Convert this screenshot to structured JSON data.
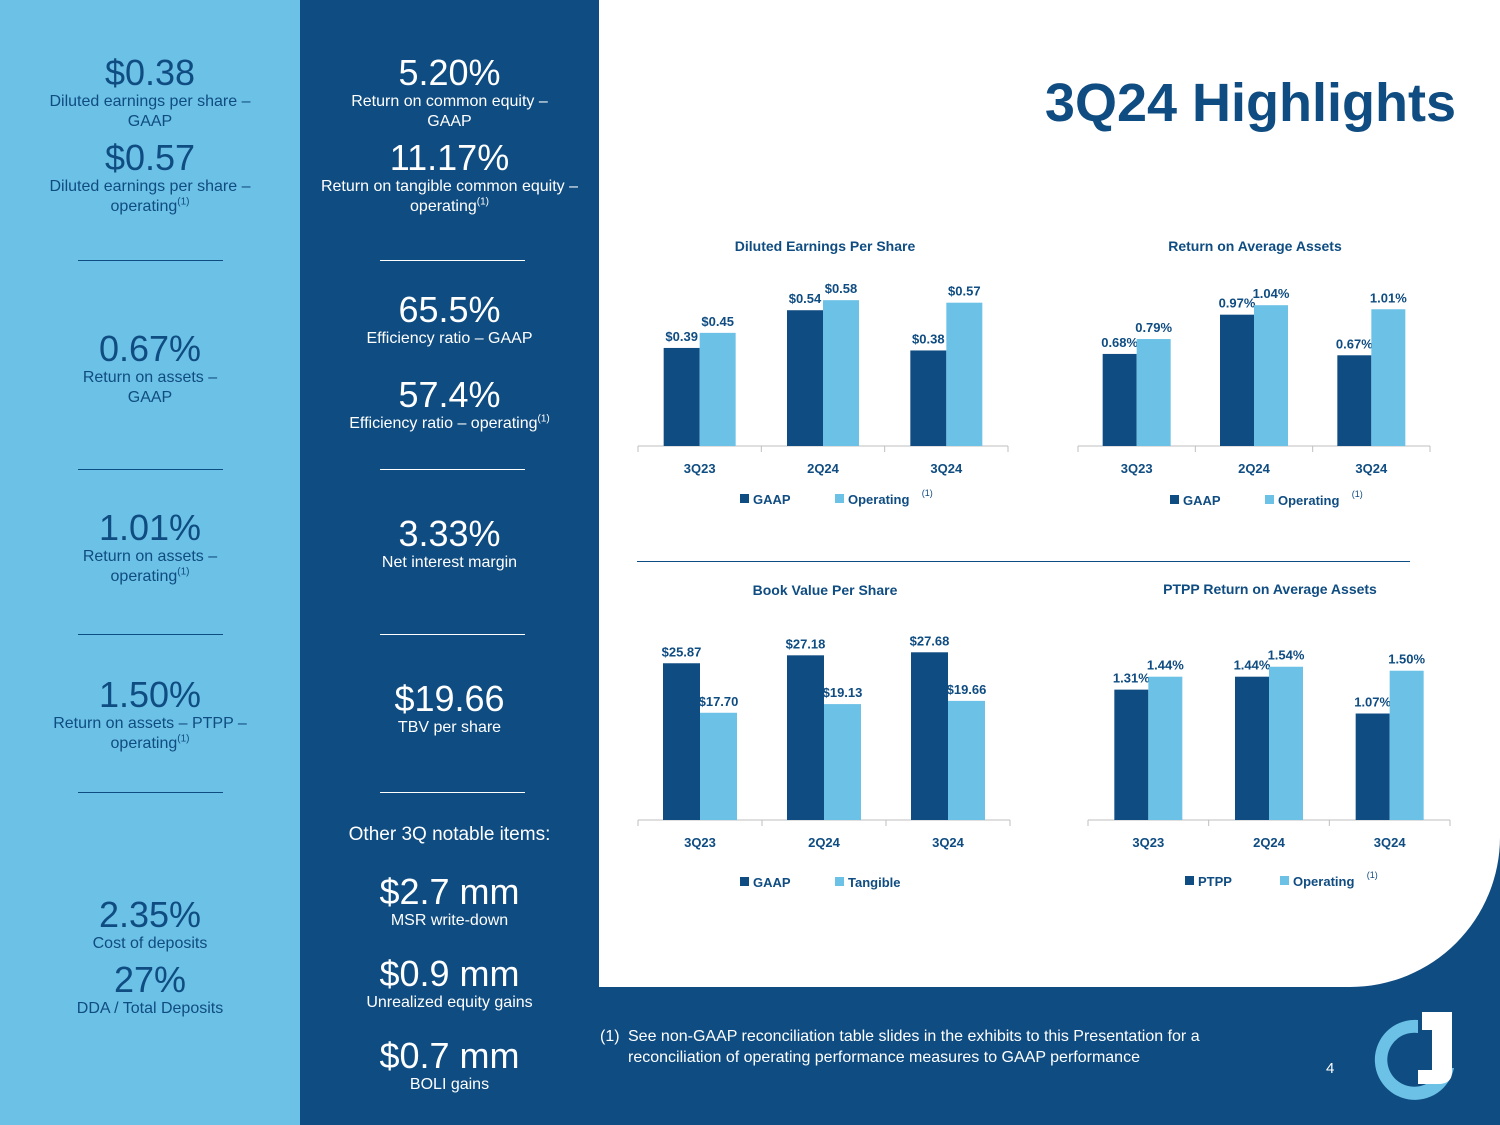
{
  "title": "3Q24 Highlights",
  "left_column": [
    {
      "value": "$0.38",
      "label": "Diluted earnings per share – GAAP",
      "sup": ""
    },
    {
      "value": "$0.57",
      "label": "Diluted earnings per share – operating",
      "sup": "(1)"
    },
    {
      "value": "0.67%",
      "label": "Return on assets – GAAP",
      "sup": ""
    },
    {
      "value": "1.01%",
      "label": "Return on assets – operating",
      "sup": "(1)"
    },
    {
      "value": "1.50%",
      "label": "Return on assets – PTPP – operating",
      "sup": "(1)"
    },
    {
      "value": "2.35%",
      "label": "Cost of deposits",
      "sup": ""
    },
    {
      "value": "27%",
      "label": "DDA / Total Deposits",
      "sup": ""
    }
  ],
  "middle_column": [
    {
      "value": "5.20%",
      "label": "Return on common equity – GAAP",
      "sup": ""
    },
    {
      "value": "11.17%",
      "label": "Return on tangible common equity – operating",
      "sup": "(1)"
    },
    {
      "value": "65.5%",
      "label": "Efficiency ratio – GAAP",
      "sup": ""
    },
    {
      "value": "57.4%",
      "label": "Efficiency ratio – operating",
      "sup": "(1)"
    },
    {
      "value": "3.33%",
      "label": "Net interest margin",
      "sup": ""
    },
    {
      "value": "$19.66",
      "label": "TBV per share",
      "sup": ""
    }
  ],
  "other_items_title": "Other 3Q notable items:",
  "other_items": [
    {
      "value": "$2.7 mm",
      "label": "MSR write-down"
    },
    {
      "value": "$0.9 mm",
      "label": "Unrealized equity gains"
    },
    {
      "value": "$0.7 mm",
      "label": "BOLI gains"
    }
  ],
  "footnote": {
    "num": "(1)",
    "text": "See non-GAAP reconciliation table slides in the exhibits to this Presentation for a reconciliation of operating performance measures to GAAP performance"
  },
  "page_number": "4",
  "colors": {
    "dark": "#0f4c81",
    "light": "#6cc1e6",
    "white": "#ffffff"
  },
  "chart_data": [
    {
      "type": "bar",
      "title": "Diluted Earnings Per Share",
      "categories": [
        "3Q23",
        "2Q24",
        "3Q24"
      ],
      "series": [
        {
          "name": "GAAP",
          "values": [
            0.39,
            0.54,
            0.38
          ],
          "labels": [
            "$0.39",
            "$0.54",
            "$0.38"
          ]
        },
        {
          "name": "Operating",
          "sup": "(1)",
          "values": [
            0.45,
            0.58,
            0.57
          ],
          "labels": [
            "$0.45",
            "$0.58",
            "$0.57"
          ]
        }
      ],
      "ylim": [
        0,
        0.7
      ]
    },
    {
      "type": "bar",
      "title": "Return on Average Assets",
      "categories": [
        "3Q23",
        "2Q24",
        "3Q24"
      ],
      "series": [
        {
          "name": "GAAP",
          "values": [
            0.68,
            0.97,
            0.67
          ],
          "labels": [
            "0.68%",
            "0.97%",
            "0.67%"
          ]
        },
        {
          "name": "Operating",
          "sup": "(1)",
          "values": [
            0.79,
            1.04,
            1.01
          ],
          "labels": [
            "0.79%",
            "1.04%",
            "1.01%"
          ]
        }
      ],
      "ylim": [
        0,
        1.3
      ]
    },
    {
      "type": "bar",
      "title": "Book Value Per Share",
      "categories": [
        "3Q23",
        "2Q24",
        "3Q24"
      ],
      "series": [
        {
          "name": "GAAP",
          "values": [
            25.87,
            27.18,
            27.68
          ],
          "labels": [
            "$25.87",
            "$27.18",
            "$27.68"
          ]
        },
        {
          "name": "Tangible",
          "values": [
            17.7,
            19.13,
            19.66
          ],
          "labels": [
            "$17.70",
            "$19.13",
            "$19.66"
          ]
        }
      ],
      "ylim": [
        0,
        34
      ]
    },
    {
      "type": "bar",
      "title": "PTPP Return on Average Assets",
      "categories": [
        "3Q23",
        "2Q24",
        "3Q24"
      ],
      "series": [
        {
          "name": "PTPP",
          "values": [
            1.31,
            1.44,
            1.07
          ],
          "labels": [
            "1.31%",
            "1.44%",
            "1.07%"
          ]
        },
        {
          "name": "Operating",
          "sup": "(1)",
          "values": [
            1.44,
            1.54,
            1.5
          ],
          "labels": [
            "1.44%",
            "1.54%",
            "1.50%"
          ]
        }
      ],
      "ylim": [
        0,
        2.07
      ]
    }
  ]
}
